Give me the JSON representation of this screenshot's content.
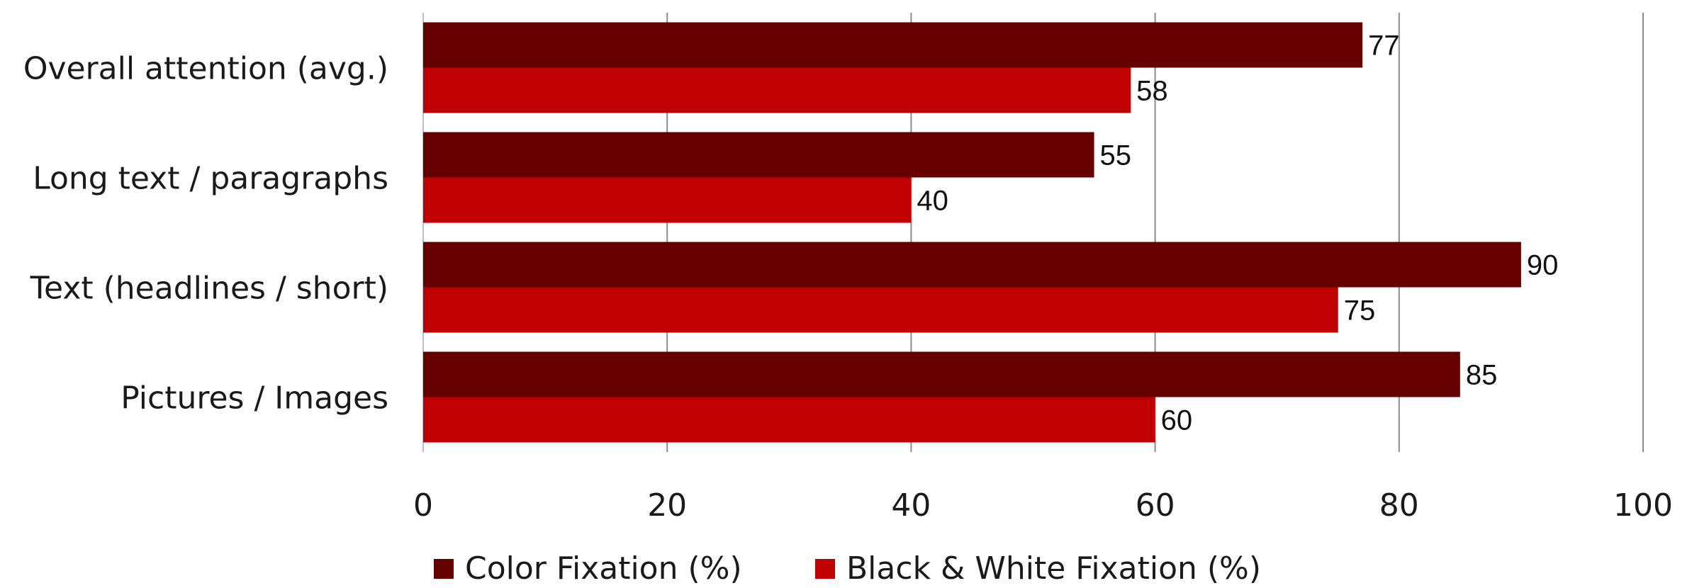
{
  "chart_data": {
    "type": "bar",
    "orientation": "horizontal",
    "title": "",
    "xlabel": "",
    "ylabel": "",
    "categories": [
      "Overall attention (avg.)",
      "Long text / paragraphs",
      "Text (headlines / short)",
      "Pictures / Images"
    ],
    "series": [
      {
        "name": "Color Fixation (%)",
        "color": "#660000",
        "values": [
          77,
          55,
          90,
          85
        ]
      },
      {
        "name": "Black & White Fixation (%)",
        "color": "#c00000",
        "values": [
          58,
          40,
          75,
          60
        ]
      }
    ],
    "xlim": [
      0,
      100
    ],
    "xticks": [
      "0",
      "20",
      "40",
      "60",
      "80",
      "100"
    ],
    "grid": "vertical",
    "data_labels": true,
    "legend_position": "bottom"
  }
}
